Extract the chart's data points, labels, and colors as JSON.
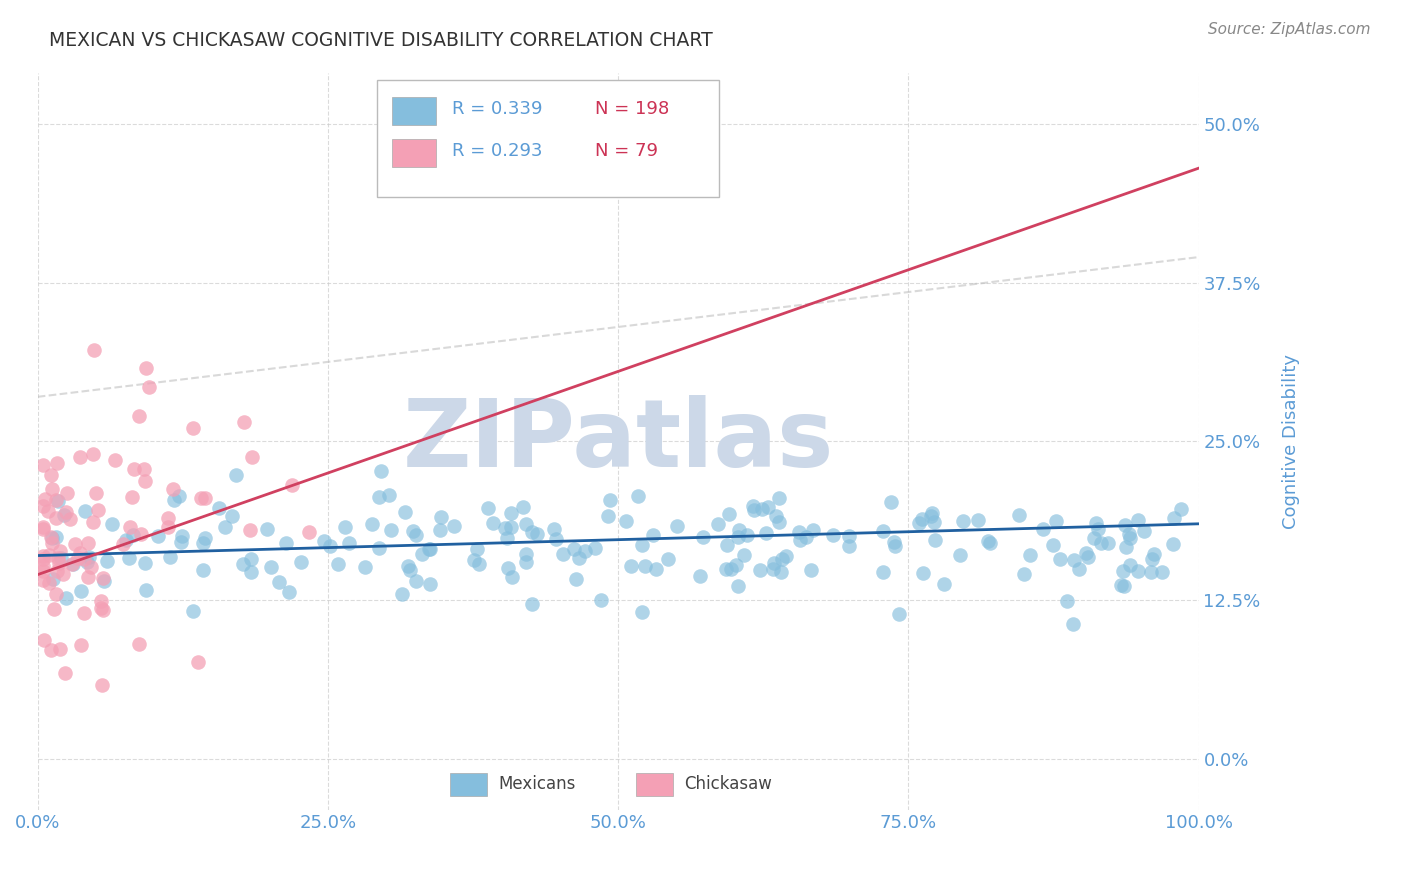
{
  "title": "MEXICAN VS CHICKASAW COGNITIVE DISABILITY CORRELATION CHART",
  "source_text": "Source: ZipAtlas.com",
  "ylabel": "Cognitive Disability",
  "xlim": [
    0.0,
    1.0
  ],
  "ylim": [
    -0.04,
    0.54
  ],
  "yticks": [
    0.0,
    0.125,
    0.25,
    0.375,
    0.5
  ],
  "xticks": [
    0.0,
    0.25,
    0.5,
    0.75,
    1.0
  ],
  "xtick_labels": [
    "0.0%",
    "25.0%",
    "50.0%",
    "75.0%",
    "100.0%"
  ],
  "blue_R": 0.339,
  "blue_N": 198,
  "pink_R": 0.293,
  "pink_N": 79,
  "blue_color": "#85bedd",
  "pink_color": "#f4a0b5",
  "blue_line_color": "#2060a0",
  "pink_line_color": "#d04060",
  "title_color": "#333333",
  "tick_label_color": "#5b9bd5",
  "legend_R_color": "#5b9bd5",
  "legend_N_color": "#cc3355",
  "grid_color": "#cccccc",
  "background_color": "#ffffff",
  "watermark_text": "ZIPatlas",
  "watermark_color": "#ccd8e8"
}
